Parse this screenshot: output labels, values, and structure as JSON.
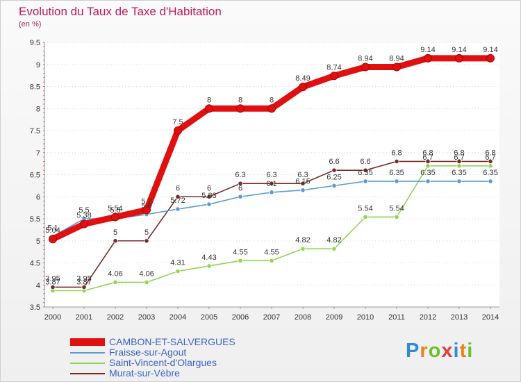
{
  "header": {
    "title": "Evolution du Taux de Taxe d'Habitation",
    "unit": "(en %)"
  },
  "logo": {
    "letters": [
      "P",
      "r",
      "o",
      "x",
      "i",
      "t",
      "i"
    ],
    "colors": [
      "#2e8bd8",
      "#e8841a",
      "#6bbf2e",
      "#e33d3d",
      "#2e8bd8",
      "#e8841a",
      "#6bbf2e"
    ]
  },
  "chart_data": {
    "type": "line",
    "title": "Evolution du Taux de Taxe d'Habitation",
    "ylabel": "(en %)",
    "xlabel": "",
    "x": [
      "2000",
      "2001",
      "2002",
      "2003",
      "2004",
      "2005",
      "2006",
      "2007",
      "2008",
      "2009",
      "2010",
      "2011",
      "2012",
      "2013",
      "2014"
    ],
    "ylim": [
      3.5,
      9.5
    ],
    "yticks": [
      "3.5",
      "4",
      "4.5",
      "5",
      "5.5",
      "6",
      "6.5",
      "7",
      "7.5",
      "8",
      "8.5",
      "9",
      "9.5"
    ],
    "grid": "horizontal",
    "legend_position": "bottom-left",
    "series": [
      {
        "name": "CAMBON-ET-SALVERGUES",
        "color": "#e01010",
        "values": [
          5.04,
          5.38,
          5.54,
          5.7,
          7.5,
          8,
          8,
          8,
          8.49,
          8.74,
          8.94,
          8.94,
          9.14,
          9.14,
          9.14
        ],
        "labels": [
          "5.04",
          "5.38",
          "5.54",
          "5.7",
          "7.5",
          "8",
          "8",
          "8",
          "8.49",
          "8.74",
          "8.94",
          "8.94",
          "9.14",
          "9.14",
          "9.14"
        ]
      },
      {
        "name": "Fraisse-sur-Agout",
        "color": "#5b9bd5",
        "values": [
          5.1,
          5.5,
          5.5,
          5.6,
          5.72,
          5.83,
          6,
          6.1,
          6.15,
          6.25,
          6.35,
          6.35,
          6.35,
          6.35,
          6.35
        ],
        "labels": [
          "5.1",
          "5.5",
          "5.5",
          "5.6",
          "5.72",
          "5.83",
          "6",
          "6.1",
          "6.15",
          "6.25",
          "6.35",
          "6.35",
          "6.35",
          "6.35",
          "6.35"
        ]
      },
      {
        "name": "Saint-Vincent-d'Olargues",
        "color": "#8ed653",
        "values": [
          3.87,
          3.87,
          4.06,
          4.06,
          4.31,
          4.43,
          4.55,
          4.55,
          4.82,
          4.82,
          5.54,
          5.54,
          6.7,
          6.7,
          6.7
        ],
        "labels": [
          "3.87",
          "3.87",
          "4.06",
          "4.06",
          "4.31",
          "4.43",
          "4.55",
          "4.55",
          "4.82",
          "4.82",
          "5.54",
          "5.54",
          "6.7",
          "6.7",
          "6.7"
        ]
      },
      {
        "name": "Murat-sur-Vèbre",
        "color": "#7a2a2a",
        "values": [
          3.95,
          3.95,
          5,
          5,
          6,
          6,
          6.3,
          6.3,
          6.3,
          6.6,
          6.6,
          6.8,
          6.8,
          6.8,
          6.8
        ],
        "labels": [
          "3.95",
          "3.95",
          "5",
          "5",
          "6",
          "6",
          "6.3",
          "6.3",
          "6.3",
          "6.6",
          "6.6",
          "6.8",
          "6.8",
          "6.8",
          "6.8"
        ]
      }
    ]
  }
}
